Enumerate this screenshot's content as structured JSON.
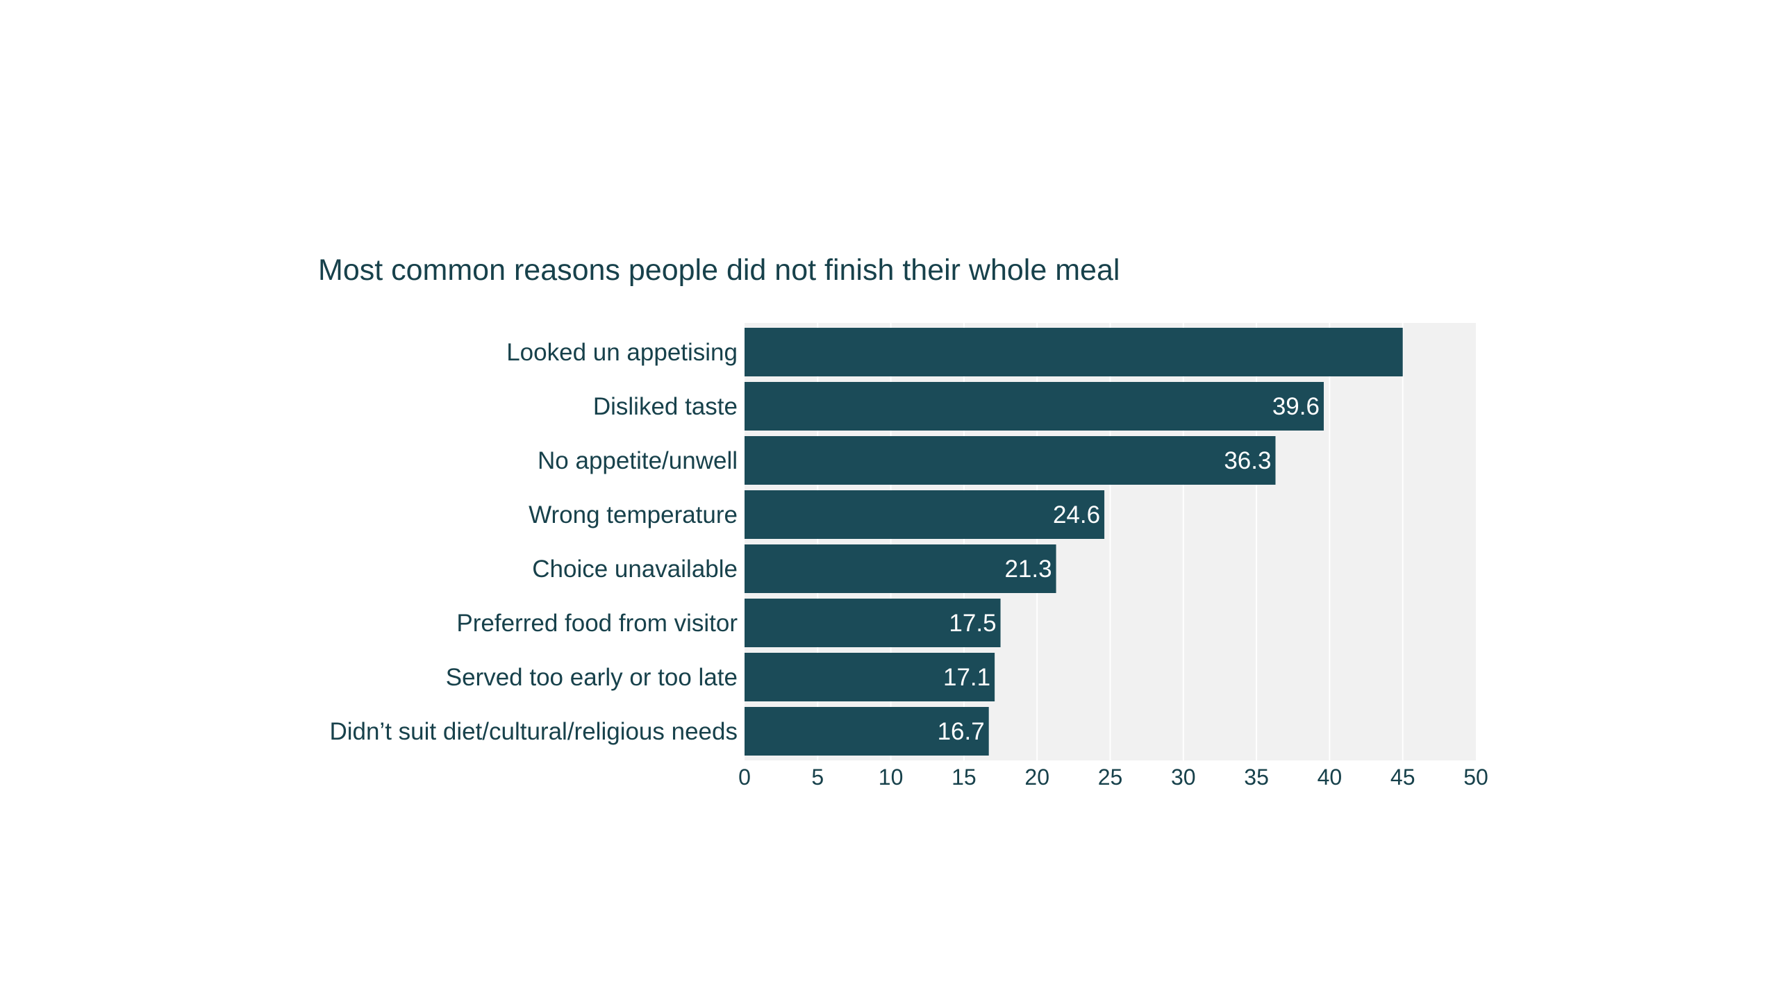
{
  "chart_data": {
    "type": "bar",
    "orientation": "horizontal",
    "title": "Most common reasons people did not finish their whole meal",
    "categories": [
      "Looked un appetising",
      "Disliked taste",
      "No appetite/unwell",
      "Wrong temperature",
      "Choice unavailable",
      "Preferred food from visitor",
      "Served too early or too late",
      "Didn’t suit diet/cultural/religious needs"
    ],
    "values": [
      45,
      39.6,
      36.3,
      24.6,
      21.3,
      17.5,
      17.1,
      16.7
    ],
    "value_labels": [
      "",
      "39.6",
      "36.3",
      "24.6",
      "21.3",
      "17.5",
      "17.1",
      "16.7"
    ],
    "xlim": [
      0,
      50
    ],
    "xticks": [
      "0",
      "5",
      "10",
      "15",
      "20",
      "25",
      "30",
      "35",
      "40",
      "45",
      "50"
    ],
    "grid": "vertical",
    "colors": {
      "bar": "#1b4b58",
      "plot_background": "#f1f1f1",
      "gridline": "#ffffff",
      "text": "#17414b",
      "value_text": "#ffffff"
    }
  }
}
